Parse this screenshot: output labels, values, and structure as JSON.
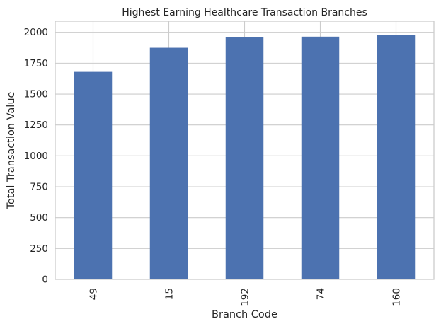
{
  "chart_data": {
    "type": "bar",
    "title": "Highest Earning Healthcare Transaction Branches",
    "xlabel": "Branch Code",
    "ylabel": "Total Transaction Value",
    "categories": [
      "49",
      "15",
      "192",
      "74",
      "160"
    ],
    "values": [
      1680,
      1875,
      1960,
      1965,
      1980
    ],
    "ylim": [
      0,
      2090
    ],
    "yticks": [
      0,
      250,
      500,
      750,
      1000,
      1250,
      1500,
      1750,
      2000
    ],
    "x_tick_rotation": "vertical",
    "grid": true,
    "legend": "none",
    "bar_color": "#4c72b0",
    "grid_color": "#cccccc",
    "spine_color": "#cccccc"
  }
}
